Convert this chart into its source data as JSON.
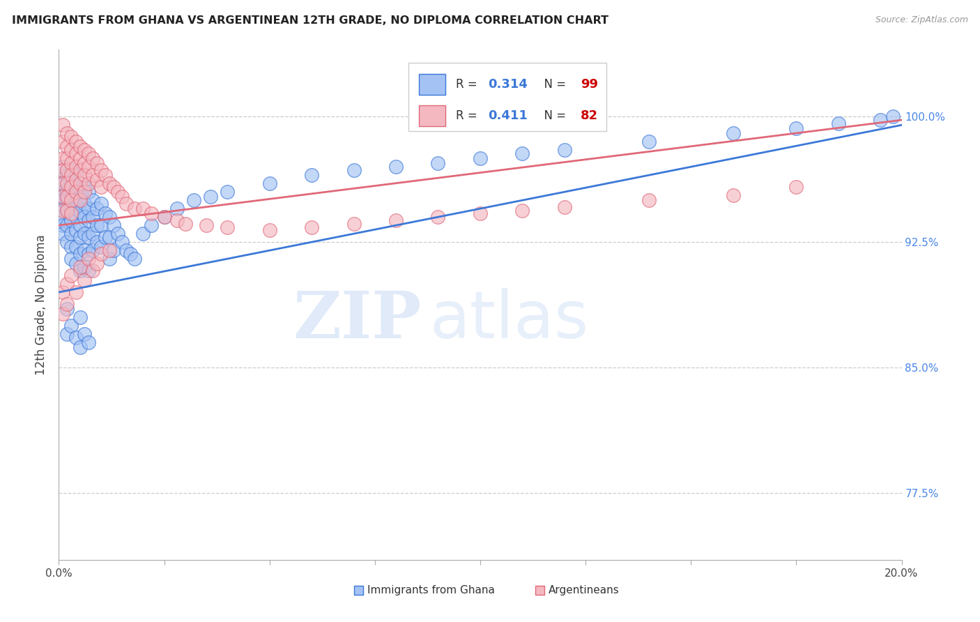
{
  "title": "IMMIGRANTS FROM GHANA VS ARGENTINEAN 12TH GRADE, NO DIPLOMA CORRELATION CHART",
  "source": "Source: ZipAtlas.com",
  "ylabel": "12th Grade, No Diploma",
  "yticks": [
    0.775,
    0.85,
    0.925,
    1.0
  ],
  "ytick_labels": [
    "77.5%",
    "85.0%",
    "92.5%",
    "100.0%"
  ],
  "xlim": [
    0.0,
    0.2
  ],
  "ylim": [
    0.735,
    1.04
  ],
  "color_blue": "#a4c2f4",
  "color_pink": "#f4b8c1",
  "color_line_blue": "#3c78d8",
  "color_line_pink": "#e06878",
  "color_title": "#222222",
  "color_source": "#999999",
  "color_ytick": "#4a86e8",
  "watermark_zip": "ZIP",
  "watermark_atlas": "atlas",
  "ghana_x": [
    0.001,
    0.001,
    0.001,
    0.001,
    0.001,
    0.001,
    0.001,
    0.001,
    0.002,
    0.002,
    0.002,
    0.002,
    0.002,
    0.002,
    0.003,
    0.003,
    0.003,
    0.003,
    0.003,
    0.003,
    0.003,
    0.003,
    0.004,
    0.004,
    0.004,
    0.004,
    0.004,
    0.004,
    0.004,
    0.005,
    0.005,
    0.005,
    0.005,
    0.005,
    0.005,
    0.005,
    0.006,
    0.006,
    0.006,
    0.006,
    0.006,
    0.006,
    0.007,
    0.007,
    0.007,
    0.007,
    0.007,
    0.007,
    0.008,
    0.008,
    0.008,
    0.008,
    0.009,
    0.009,
    0.009,
    0.01,
    0.01,
    0.01,
    0.011,
    0.011,
    0.012,
    0.012,
    0.012,
    0.013,
    0.013,
    0.014,
    0.015,
    0.016,
    0.017,
    0.018,
    0.02,
    0.022,
    0.025,
    0.028,
    0.032,
    0.036,
    0.04,
    0.05,
    0.06,
    0.07,
    0.08,
    0.09,
    0.1,
    0.11,
    0.12,
    0.14,
    0.16,
    0.175,
    0.185,
    0.195,
    0.198,
    0.002,
    0.002,
    0.003,
    0.004,
    0.005,
    0.005,
    0.006,
    0.007
  ],
  "ghana_y": [
    0.97,
    0.96,
    0.955,
    0.95,
    0.945,
    0.94,
    0.935,
    0.93,
    0.965,
    0.955,
    0.95,
    0.945,
    0.935,
    0.925,
    0.968,
    0.96,
    0.952,
    0.945,
    0.938,
    0.93,
    0.922,
    0.915,
    0.965,
    0.958,
    0.948,
    0.94,
    0.932,
    0.922,
    0.912,
    0.96,
    0.952,
    0.943,
    0.935,
    0.928,
    0.918,
    0.908,
    0.958,
    0.948,
    0.94,
    0.93,
    0.92,
    0.91,
    0.955,
    0.945,
    0.938,
    0.928,
    0.918,
    0.908,
    0.95,
    0.94,
    0.93,
    0.92,
    0.945,
    0.935,
    0.925,
    0.948,
    0.935,
    0.922,
    0.942,
    0.928,
    0.94,
    0.928,
    0.915,
    0.935,
    0.92,
    0.93,
    0.925,
    0.92,
    0.918,
    0.915,
    0.93,
    0.935,
    0.94,
    0.945,
    0.95,
    0.952,
    0.955,
    0.96,
    0.965,
    0.968,
    0.97,
    0.972,
    0.975,
    0.978,
    0.98,
    0.985,
    0.99,
    0.993,
    0.996,
    0.998,
    1.0,
    0.885,
    0.87,
    0.875,
    0.868,
    0.88,
    0.862,
    0.87,
    0.865
  ],
  "arg_x": [
    0.001,
    0.001,
    0.001,
    0.001,
    0.001,
    0.001,
    0.001,
    0.002,
    0.002,
    0.002,
    0.002,
    0.002,
    0.002,
    0.002,
    0.003,
    0.003,
    0.003,
    0.003,
    0.003,
    0.003,
    0.003,
    0.004,
    0.004,
    0.004,
    0.004,
    0.004,
    0.005,
    0.005,
    0.005,
    0.005,
    0.005,
    0.006,
    0.006,
    0.006,
    0.006,
    0.007,
    0.007,
    0.007,
    0.008,
    0.008,
    0.009,
    0.009,
    0.01,
    0.01,
    0.011,
    0.012,
    0.013,
    0.014,
    0.015,
    0.016,
    0.018,
    0.02,
    0.022,
    0.025,
    0.028,
    0.03,
    0.035,
    0.04,
    0.05,
    0.06,
    0.07,
    0.08,
    0.09,
    0.1,
    0.11,
    0.12,
    0.14,
    0.16,
    0.175,
    0.001,
    0.001,
    0.002,
    0.002,
    0.003,
    0.004,
    0.005,
    0.006,
    0.007,
    0.008,
    0.009,
    0.01,
    0.012
  ],
  "arg_y": [
    0.995,
    0.985,
    0.975,
    0.968,
    0.96,
    0.952,
    0.944,
    0.99,
    0.982,
    0.975,
    0.968,
    0.96,
    0.952,
    0.944,
    0.988,
    0.98,
    0.972,
    0.965,
    0.958,
    0.95,
    0.942,
    0.985,
    0.978,
    0.97,
    0.962,
    0.955,
    0.982,
    0.975,
    0.968,
    0.96,
    0.95,
    0.98,
    0.972,
    0.965,
    0.955,
    0.978,
    0.97,
    0.96,
    0.975,
    0.965,
    0.972,
    0.962,
    0.968,
    0.958,
    0.965,
    0.96,
    0.958,
    0.955,
    0.952,
    0.948,
    0.945,
    0.945,
    0.942,
    0.94,
    0.938,
    0.936,
    0.935,
    0.934,
    0.932,
    0.934,
    0.936,
    0.938,
    0.94,
    0.942,
    0.944,
    0.946,
    0.95,
    0.953,
    0.958,
    0.895,
    0.882,
    0.9,
    0.888,
    0.905,
    0.895,
    0.91,
    0.902,
    0.915,
    0.908,
    0.912,
    0.918,
    0.92
  ]
}
